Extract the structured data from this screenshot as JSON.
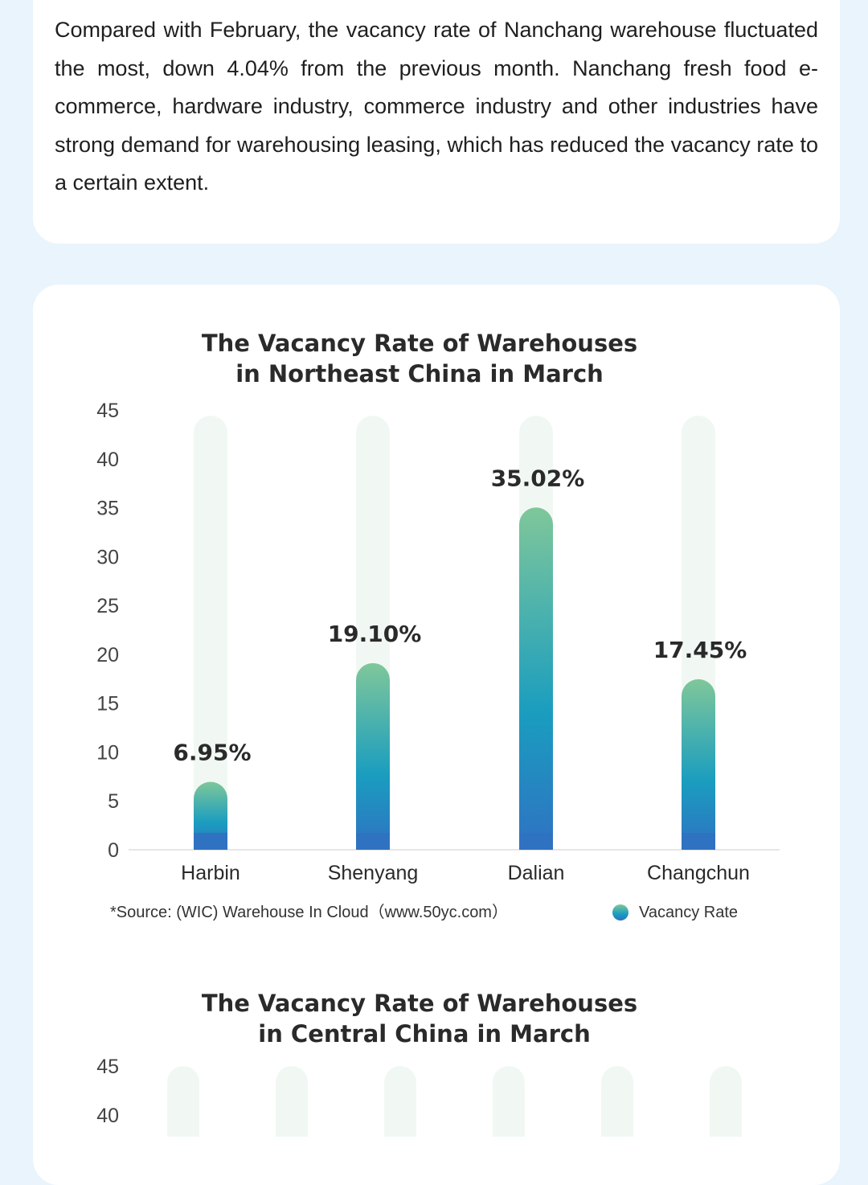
{
  "intro_text": "Compared with February, the vacancy rate of Nanchang warehouse fluctuated the most, down 4.04% from the previous month. Nanchang fresh food e-commerce, hardware industry, commerce industry and other industries have strong demand for warehousing leasing, which has reduced the vacancy rate to a certain extent.",
  "colors": {
    "bar_top": "#7fc79a",
    "bar_mid": "#1a9dbf",
    "bar_bottom": "#2f72c2",
    "track": "#f1f8f3"
  },
  "chart_data": [
    {
      "type": "bar",
      "title_line1": "The Vacancy Rate of Warehouses",
      "title_line2": "in Northeast China in March",
      "categories": [
        "Harbin",
        "Shenyang",
        "Dalian",
        "Changchun"
      ],
      "series": [
        {
          "name": "Vacancy Rate",
          "values": [
            6.95,
            19.1,
            35.02,
            17.45
          ]
        }
      ],
      "value_labels": [
        "6.95%",
        "19.10%",
        "35.02%",
        "17.45%"
      ],
      "yticks": [
        "0",
        "5",
        "10",
        "15",
        "20",
        "25",
        "30",
        "35",
        "40",
        "45"
      ],
      "ylim": [
        0,
        45
      ],
      "source": "*Source: (WIC) Warehouse In Cloud（www.50yc.com）",
      "legend": "Vacancy Rate"
    },
    {
      "type": "bar",
      "title_line1": "The Vacancy Rate of Warehouses",
      "title_line2": "in Central China in March",
      "bar_count": 6,
      "yticks_visible": [
        "45",
        "40"
      ],
      "ylim": [
        0,
        45
      ]
    }
  ]
}
